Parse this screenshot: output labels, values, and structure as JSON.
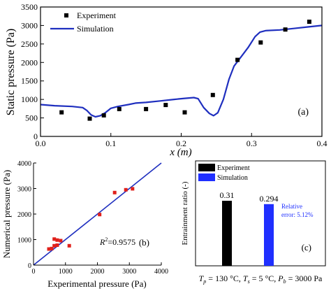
{
  "chart_data": [
    {
      "id": "a",
      "type": "line",
      "panel_label": "(a)",
      "xlabel": "x (m)",
      "ylabel": "Static pressure (Pa)",
      "xlim": [
        0.0,
        0.4
      ],
      "ylim": [
        0,
        3500
      ],
      "x_ticks": [
        "0.0",
        "0.1",
        "0.2",
        "0.3",
        "0.4"
      ],
      "y_ticks": [
        "0",
        "500",
        "1000",
        "1500",
        "2000",
        "2500",
        "3000",
        "3500"
      ],
      "legend_position": "top-left",
      "series": [
        {
          "name": "Experiment",
          "style": "scatter",
          "color": "#000000",
          "points": [
            [
              0.03,
              650
            ],
            [
              0.07,
              480
            ],
            [
              0.09,
              570
            ],
            [
              0.112,
              740
            ],
            [
              0.15,
              740
            ],
            [
              0.178,
              850
            ],
            [
              0.205,
              650
            ],
            [
              0.245,
              1120
            ],
            [
              0.28,
              2070
            ],
            [
              0.313,
              2540
            ],
            [
              0.348,
              2890
            ],
            [
              0.382,
              3100
            ]
          ]
        },
        {
          "name": "Simulation",
          "style": "line",
          "color": "#1f2fbf",
          "points": [
            [
              0.0,
              860
            ],
            [
              0.02,
              830
            ],
            [
              0.045,
              810
            ],
            [
              0.06,
              780
            ],
            [
              0.066,
              700
            ],
            [
              0.072,
              580
            ],
            [
              0.078,
              530
            ],
            [
              0.085,
              560
            ],
            [
              0.092,
              640
            ],
            [
              0.1,
              760
            ],
            [
              0.11,
              810
            ],
            [
              0.125,
              860
            ],
            [
              0.135,
              900
            ],
            [
              0.15,
              920
            ],
            [
              0.17,
              960
            ],
            [
              0.19,
              1000
            ],
            [
              0.205,
              1030
            ],
            [
              0.218,
              1050
            ],
            [
              0.224,
              1020
            ],
            [
              0.232,
              780
            ],
            [
              0.24,
              620
            ],
            [
              0.246,
              560
            ],
            [
              0.252,
              640
            ],
            [
              0.26,
              1000
            ],
            [
              0.268,
              1550
            ],
            [
              0.275,
              1900
            ],
            [
              0.285,
              2150
            ],
            [
              0.295,
              2400
            ],
            [
              0.305,
              2700
            ],
            [
              0.312,
              2820
            ],
            [
              0.32,
              2860
            ],
            [
              0.34,
              2880
            ],
            [
              0.36,
              2920
            ],
            [
              0.38,
              2960
            ],
            [
              0.4,
              3000
            ]
          ]
        }
      ]
    },
    {
      "id": "b",
      "type": "scatter",
      "panel_label": "(b)",
      "xlabel": "Experimental pressure (Pa)",
      "ylabel": "Numerical pressure (Pa)",
      "xlim": [
        0,
        4000
      ],
      "ylim": [
        0,
        4000
      ],
      "x_ticks": [
        "0",
        "1000",
        "2000",
        "3000",
        "4000"
      ],
      "y_ticks": [
        "0",
        "1000",
        "2000",
        "3000",
        "4000"
      ],
      "annotation_r": "R",
      "annotation_sup": "2",
      "annotation_val": "=0.9575",
      "points_color": "#e0201b",
      "line_color": "#1f2fbf",
      "points": [
        [
          480,
          630
        ],
        [
          570,
          650
        ],
        [
          650,
          1020
        ],
        [
          650,
          760
        ],
        [
          740,
          780
        ],
        [
          740,
          980
        ],
        [
          850,
          960
        ],
        [
          1120,
          760
        ],
        [
          2070,
          1980
        ],
        [
          2540,
          2840
        ],
        [
          2890,
          2950
        ],
        [
          3100,
          2990
        ]
      ],
      "fit_line": [
        [
          0,
          0
        ],
        [
          4000,
          4000
        ]
      ]
    },
    {
      "id": "c",
      "type": "bar",
      "panel_label": "(c)",
      "ylabel": "Entrainment ratio (-)",
      "ylim": [
        0,
        0.5
      ],
      "legend_position": "top-left",
      "series": [
        {
          "name": "Experiment",
          "value": 0.31,
          "label": "0.31",
          "color": "#000000"
        },
        {
          "name": "Simulation",
          "value": 0.294,
          "label": "0.294",
          "color": "#1f2fff"
        }
      ],
      "note_line1": "Relative",
      "note_line2": "error: 5.12%",
      "note_color": "#1f2fff",
      "caption": {
        "tp": "T",
        "tp_sub": "p",
        "tp_val": " = 130 °C, ",
        "ts": "T",
        "ts_sub": "s",
        "ts_val": " = 5 °C, ",
        "pb": "P",
        "pb_sub": "b",
        "pb_val": " = 3000 Pa"
      }
    }
  ]
}
